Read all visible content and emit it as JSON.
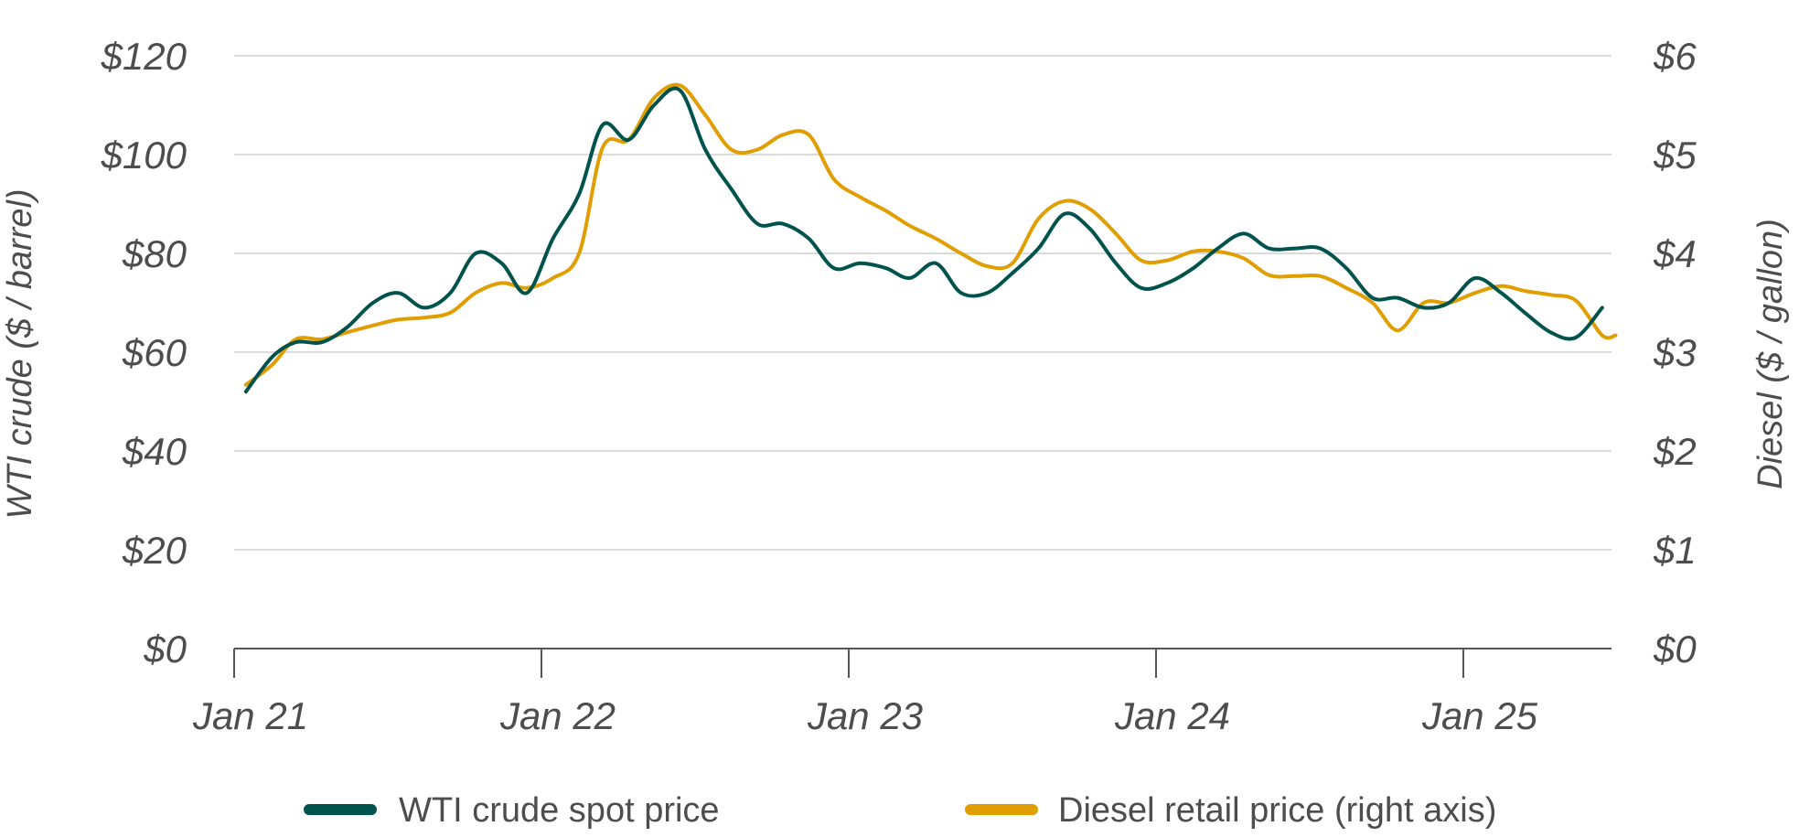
{
  "chart_data": {
    "type": "line",
    "title": "",
    "ylabel_left": "WTI crude ($ / barrel)",
    "ylabel_right": "Diesel ($ / gallon)",
    "ylim_left": [
      0,
      120
    ],
    "ylim_right": [
      0,
      6
    ],
    "y_ticks_left": [
      "$0",
      "$20",
      "$40",
      "$60",
      "$80",
      "$100",
      "$120"
    ],
    "y_ticks_right": [
      "$0",
      "$1",
      "$2",
      "$3",
      "$4",
      "$5",
      "$6"
    ],
    "x_ticks": [
      "Jan 21",
      "Jan 22",
      "Jan 23",
      "Jan 24",
      "Jan 25"
    ],
    "grid": true,
    "legend_position": "bottom",
    "series": [
      {
        "name": "WTI crude spot price",
        "axis": "left",
        "color": "#00534c",
        "points": [
          [
            "2021-01-15",
            52
          ],
          [
            "2021-02-15",
            59
          ],
          [
            "2021-03-15",
            62
          ],
          [
            "2021-04-15",
            62
          ],
          [
            "2021-05-15",
            65
          ],
          [
            "2021-06-15",
            70
          ],
          [
            "2021-07-15",
            72
          ],
          [
            "2021-08-15",
            69
          ],
          [
            "2021-09-15",
            72
          ],
          [
            "2021-10-15",
            80
          ],
          [
            "2021-11-15",
            78
          ],
          [
            "2021-12-15",
            72
          ],
          [
            "2022-01-15",
            83
          ],
          [
            "2022-02-15",
            92
          ],
          [
            "2022-03-15",
            106
          ],
          [
            "2022-04-15",
            103
          ],
          [
            "2022-05-15",
            110
          ],
          [
            "2022-06-15",
            113
          ],
          [
            "2022-07-15",
            101
          ],
          [
            "2022-08-15",
            93
          ],
          [
            "2022-09-15",
            86
          ],
          [
            "2022-10-15",
            86
          ],
          [
            "2022-11-15",
            83
          ],
          [
            "2022-12-15",
            77
          ],
          [
            "2023-01-15",
            78
          ],
          [
            "2023-02-15",
            77
          ],
          [
            "2023-03-15",
            75
          ],
          [
            "2023-04-15",
            78
          ],
          [
            "2023-05-15",
            72
          ],
          [
            "2023-06-15",
            72
          ],
          [
            "2023-07-15",
            76
          ],
          [
            "2023-08-15",
            81
          ],
          [
            "2023-09-15",
            88
          ],
          [
            "2023-10-15",
            85
          ],
          [
            "2023-11-15",
            78
          ],
          [
            "2023-12-15",
            73
          ],
          [
            "2024-01-15",
            74
          ],
          [
            "2024-02-15",
            77
          ],
          [
            "2024-03-15",
            81
          ],
          [
            "2024-04-15",
            84
          ],
          [
            "2024-05-15",
            81
          ],
          [
            "2024-06-15",
            81
          ],
          [
            "2024-07-15",
            81
          ],
          [
            "2024-08-15",
            77
          ],
          [
            "2024-09-15",
            71
          ],
          [
            "2024-10-15",
            71
          ],
          [
            "2024-11-15",
            69
          ],
          [
            "2024-12-15",
            70
          ],
          [
            "2025-01-15",
            75
          ],
          [
            "2025-02-15",
            72
          ],
          [
            "2025-03-15",
            68
          ],
          [
            "2025-04-15",
            64
          ],
          [
            "2025-05-15",
            63
          ],
          [
            "2025-06-15",
            69
          ]
        ]
      },
      {
        "name": "Diesel retail price (right axis)",
        "axis": "right",
        "color": "#e09e00",
        "points": [
          [
            "2021-01-15",
            2.67
          ],
          [
            "2021-02-15",
            2.87
          ],
          [
            "2021-03-15",
            3.13
          ],
          [
            "2021-04-15",
            3.13
          ],
          [
            "2021-05-15",
            3.2
          ],
          [
            "2021-06-15",
            3.27
          ],
          [
            "2021-07-15",
            3.33
          ],
          [
            "2021-08-15",
            3.35
          ],
          [
            "2021-09-15",
            3.4
          ],
          [
            "2021-10-15",
            3.6
          ],
          [
            "2021-11-15",
            3.7
          ],
          [
            "2021-12-15",
            3.65
          ],
          [
            "2022-01-15",
            3.75
          ],
          [
            "2022-02-15",
            4.0
          ],
          [
            "2022-03-15",
            5.07
          ],
          [
            "2022-04-15",
            5.15
          ],
          [
            "2022-05-15",
            5.57
          ],
          [
            "2022-06-15",
            5.7
          ],
          [
            "2022-07-15",
            5.4
          ],
          [
            "2022-08-15",
            5.05
          ],
          [
            "2022-09-15",
            5.05
          ],
          [
            "2022-10-15",
            5.2
          ],
          [
            "2022-11-15",
            5.2
          ],
          [
            "2022-12-15",
            4.75
          ],
          [
            "2023-01-15",
            4.57
          ],
          [
            "2023-02-15",
            4.43
          ],
          [
            "2023-03-15",
            4.28
          ],
          [
            "2023-04-15",
            4.15
          ],
          [
            "2023-05-15",
            4.0
          ],
          [
            "2023-06-15",
            3.87
          ],
          [
            "2023-07-15",
            3.9
          ],
          [
            "2023-08-15",
            4.35
          ],
          [
            "2023-09-15",
            4.53
          ],
          [
            "2023-10-15",
            4.45
          ],
          [
            "2023-11-15",
            4.2
          ],
          [
            "2023-12-15",
            3.93
          ],
          [
            "2024-01-15",
            3.93
          ],
          [
            "2024-02-15",
            4.02
          ],
          [
            "2024-03-15",
            4.02
          ],
          [
            "2024-04-15",
            3.95
          ],
          [
            "2024-05-15",
            3.78
          ],
          [
            "2024-06-15",
            3.77
          ],
          [
            "2024-07-15",
            3.77
          ],
          [
            "2024-08-15",
            3.65
          ],
          [
            "2024-09-15",
            3.5
          ],
          [
            "2024-10-15",
            3.22
          ],
          [
            "2024-11-15",
            3.5
          ],
          [
            "2024-12-15",
            3.5
          ],
          [
            "2025-01-15",
            3.6
          ],
          [
            "2025-02-15",
            3.67
          ],
          [
            "2025-03-15",
            3.62
          ],
          [
            "2025-04-15",
            3.58
          ],
          [
            "2025-05-15",
            3.52
          ],
          [
            "2025-06-15",
            3.17
          ],
          [
            "2025-07-01",
            3.17
          ]
        ]
      }
    ]
  }
}
